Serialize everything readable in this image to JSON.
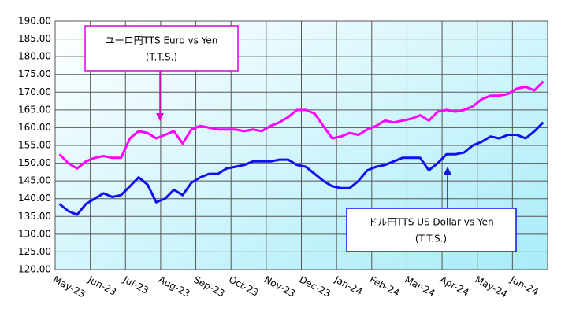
{
  "chart_data": {
    "type": "line",
    "categories": [
      "May-23",
      null,
      null,
      null,
      "Jun-23",
      null,
      null,
      null,
      "Jul-23",
      null,
      null,
      null,
      "Aug-23",
      null,
      null,
      null,
      "Sep-23",
      null,
      null,
      null,
      "Oct-23",
      null,
      null,
      null,
      "Nov-23",
      null,
      null,
      null,
      "Dec-23",
      null,
      null,
      null,
      "Jan-24",
      null,
      null,
      null,
      "Feb-24",
      null,
      null,
      null,
      "Mar-24",
      null,
      null,
      null,
      "Apr-24",
      null,
      null,
      null,
      "May-24",
      null,
      null,
      null,
      "Jun-24",
      null,
      null,
      null
    ],
    "series": [
      {
        "color": "#ff00ff",
        "values": [
          152.5,
          150,
          148.5,
          150.5,
          151.5,
          152,
          151.5,
          151.5,
          157,
          159,
          158.5,
          157,
          158,
          159,
          155.5,
          159.5,
          160.5,
          160,
          159.5,
          159.5,
          159.5,
          159,
          159.5,
          159,
          160.5,
          161.5,
          163,
          165,
          165,
          164,
          160.5,
          157,
          157.5,
          158.5,
          158,
          159.5,
          160.5,
          162,
          161.5,
          162,
          162.5,
          163.5,
          162,
          164.5,
          165,
          164.5,
          165,
          166,
          168,
          169,
          169,
          169.5,
          171,
          171.5,
          170.5,
          173
        ]
      },
      {
        "color": "#1010f0",
        "values": [
          138.5,
          136.5,
          135.5,
          138.5,
          140,
          141.5,
          140.5,
          141,
          143.5,
          146,
          144,
          139,
          140,
          142.5,
          141,
          144.5,
          146,
          147,
          147,
          148.5,
          149,
          149.5,
          150.5,
          150.5,
          150.5,
          151,
          151,
          149.5,
          149,
          147,
          145,
          143.5,
          143,
          143,
          145,
          148,
          149,
          149.5,
          150.5,
          151.5,
          151.5,
          151.5,
          148,
          150,
          152.5,
          152.5,
          153,
          155,
          156,
          157.5,
          157,
          158,
          158,
          157,
          159,
          161.5
        ]
      }
    ],
    "ylim": [
      120,
      190
    ],
    "yticks": [
      {
        "value": 120,
        "label": "120.00"
      },
      {
        "value": 125,
        "label": "125.00"
      },
      {
        "value": 130,
        "label": "130.00"
      },
      {
        "value": 135,
        "label": "135.00"
      },
      {
        "value": 140,
        "label": "140.00"
      },
      {
        "value": 145,
        "label": "145.00"
      },
      {
        "value": 150,
        "label": "150.00"
      },
      {
        "value": 155,
        "label": "155.00"
      },
      {
        "value": 160,
        "label": "160.00"
      },
      {
        "value": 165,
        "label": "165.00"
      },
      {
        "value": 170,
        "label": "170.00"
      },
      {
        "value": 175,
        "label": "175.00"
      },
      {
        "value": 180,
        "label": "180.00"
      },
      {
        "value": 185,
        "label": "185.00"
      },
      {
        "value": 190,
        "label": "190.00"
      }
    ],
    "grid": true,
    "annotations": [
      {
        "lines": [
          "ユーロ円TTS  Euro vs Yen",
          "(T.T.S.)"
        ]
      },
      {
        "lines": [
          "ドル円TTS   US Dollar vs Yen",
          "(T.T.S.)"
        ]
      }
    ]
  }
}
